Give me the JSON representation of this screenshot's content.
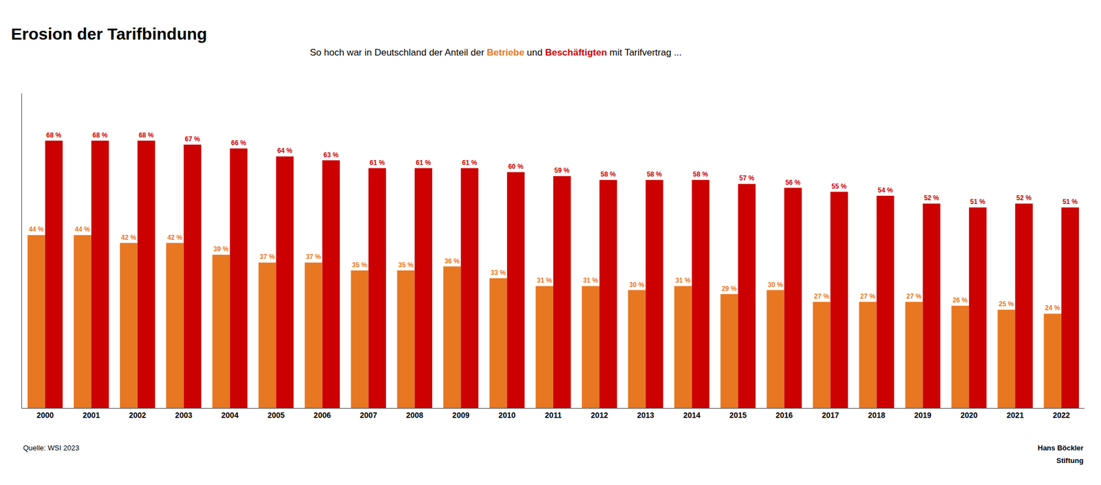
{
  "chart_data": {
    "type": "bar",
    "title": "Erosion der Tarifbindung",
    "subtitle": "So hoch war in Deutschland der Anteil der Betriebe und Beschäftigten mit Tarifvertrag ...",
    "categories": [
      "2000",
      "2001",
      "2002",
      "2003",
      "2004",
      "2005",
      "2006",
      "2007",
      "2008",
      "2009",
      "2010",
      "2011",
      "2012",
      "2013",
      "2014",
      "2015",
      "2016",
      "2017",
      "2018",
      "2019",
      "2020",
      "2021",
      "2022"
    ],
    "series": [
      {
        "name": "Betriebe",
        "color": "#E87722",
        "values": [
          44,
          44,
          42,
          42,
          39,
          37,
          37,
          35,
          35,
          36,
          33,
          31,
          31,
          30,
          31,
          29,
          30,
          27,
          27,
          27,
          26,
          25,
          24
        ],
        "value_labels": [
          "44 %",
          "44 %",
          "42 %",
          "42 %",
          "39 %",
          "37 %",
          "37 %",
          "35 %",
          "35 %",
          "36 %",
          "33 %",
          "31 %",
          "31 %",
          "30 %",
          "31 %",
          "29 %",
          "30 %",
          "27 %",
          "27 %",
          "27 %",
          "26 %",
          "25 %",
          "24 %"
        ]
      },
      {
        "name": "Beschäftigten",
        "color": "#CC0000",
        "values": [
          68,
          68,
          68,
          67,
          66,
          64,
          63,
          61,
          61,
          61,
          60,
          59,
          58,
          58,
          58,
          57,
          56,
          55,
          54,
          52,
          51,
          52,
          51
        ],
        "value_labels": [
          "68 %",
          "68 %",
          "68 %",
          "67 %",
          "66 %",
          "64 %",
          "63 %",
          "61 %",
          "61 %",
          "61 %",
          "60 %",
          "59 %",
          "58 %",
          "58 %",
          "58 %",
          "57 %",
          "56 %",
          "55 %",
          "54 %",
          "52 %",
          "51 %",
          "52 %",
          "51 %"
        ]
      }
    ],
    "ylim": [
      0,
      80
    ],
    "grid": false,
    "data_labels": true,
    "tick_labels": "x",
    "annotations": [
      "Quelle: WSI 2023",
      "Hans Böckler",
      "Stiftung"
    ]
  }
}
